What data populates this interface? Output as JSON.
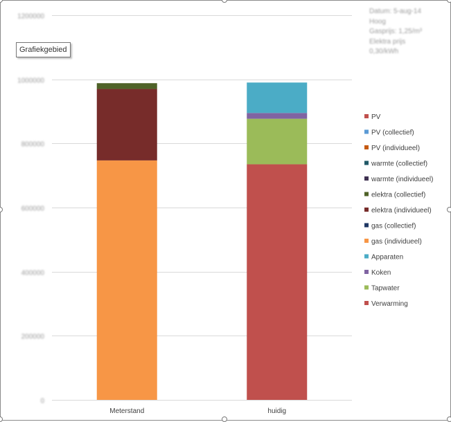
{
  "tooltip": "Grafiekgebied",
  "info_box": [
    "Datum: 5-aug-14",
    "Hoog",
    "Gasprijs: 1,25/m³",
    "Elektra prijs",
    "0,30/kWh"
  ],
  "chart_data": {
    "type": "bar",
    "stacked": true,
    "categories": [
      "Meterstand",
      "huidig"
    ],
    "ylim": [
      0,
      1200000
    ],
    "yticks": [
      0,
      200000,
      400000,
      600000,
      800000,
      1000000,
      1200000
    ],
    "ytick_labels": [
      "0",
      "200000",
      "400000",
      "600000",
      "800000",
      "1000000",
      "1200000"
    ],
    "ytick_labels_blurred": true,
    "grid": true,
    "legend_position": "right",
    "series": [
      {
        "name": "Verwarming",
        "color": "#c0504d",
        "values": [
          0,
          735000
        ]
      },
      {
        "name": "Tapwater",
        "color": "#9bbb59",
        "values": [
          0,
          142000
        ]
      },
      {
        "name": "Koken",
        "color": "#8064a2",
        "values": [
          0,
          18000
        ]
      },
      {
        "name": "Apparaten",
        "color": "#4bacc6",
        "values": [
          0,
          95000
        ]
      },
      {
        "name": "gas (individueel)",
        "color": "#f79646",
        "values": [
          747000,
          0
        ]
      },
      {
        "name": "gas (collectief)",
        "color": "#1f3864",
        "values": [
          0,
          0
        ]
      },
      {
        "name": "elektra (individueel)",
        "color": "#772c2a",
        "values": [
          223000,
          0
        ]
      },
      {
        "name": "elektra (collectief)",
        "color": "#4f6228",
        "values": [
          0,
          0
        ]
      },
      {
        "name": "warmte (individueel)",
        "color": "#3f3151",
        "values": [
          0,
          0
        ]
      },
      {
        "name": "warmte (collectief)",
        "color": "#215967",
        "values": [
          0,
          0
        ]
      },
      {
        "name": "PV (individueel)",
        "color": "#c55a11",
        "values": [
          0,
          0
        ]
      },
      {
        "name": "PV (collectief)",
        "color": "#5b9bd5",
        "values": [
          0,
          0
        ]
      },
      {
        "name": "PV",
        "color": "#c0504d",
        "values": [
          0,
          0
        ]
      }
    ],
    "extra_top_segment": {
      "name": "elektra (collectief)",
      "category": "Meterstand",
      "value": 18000
    }
  }
}
